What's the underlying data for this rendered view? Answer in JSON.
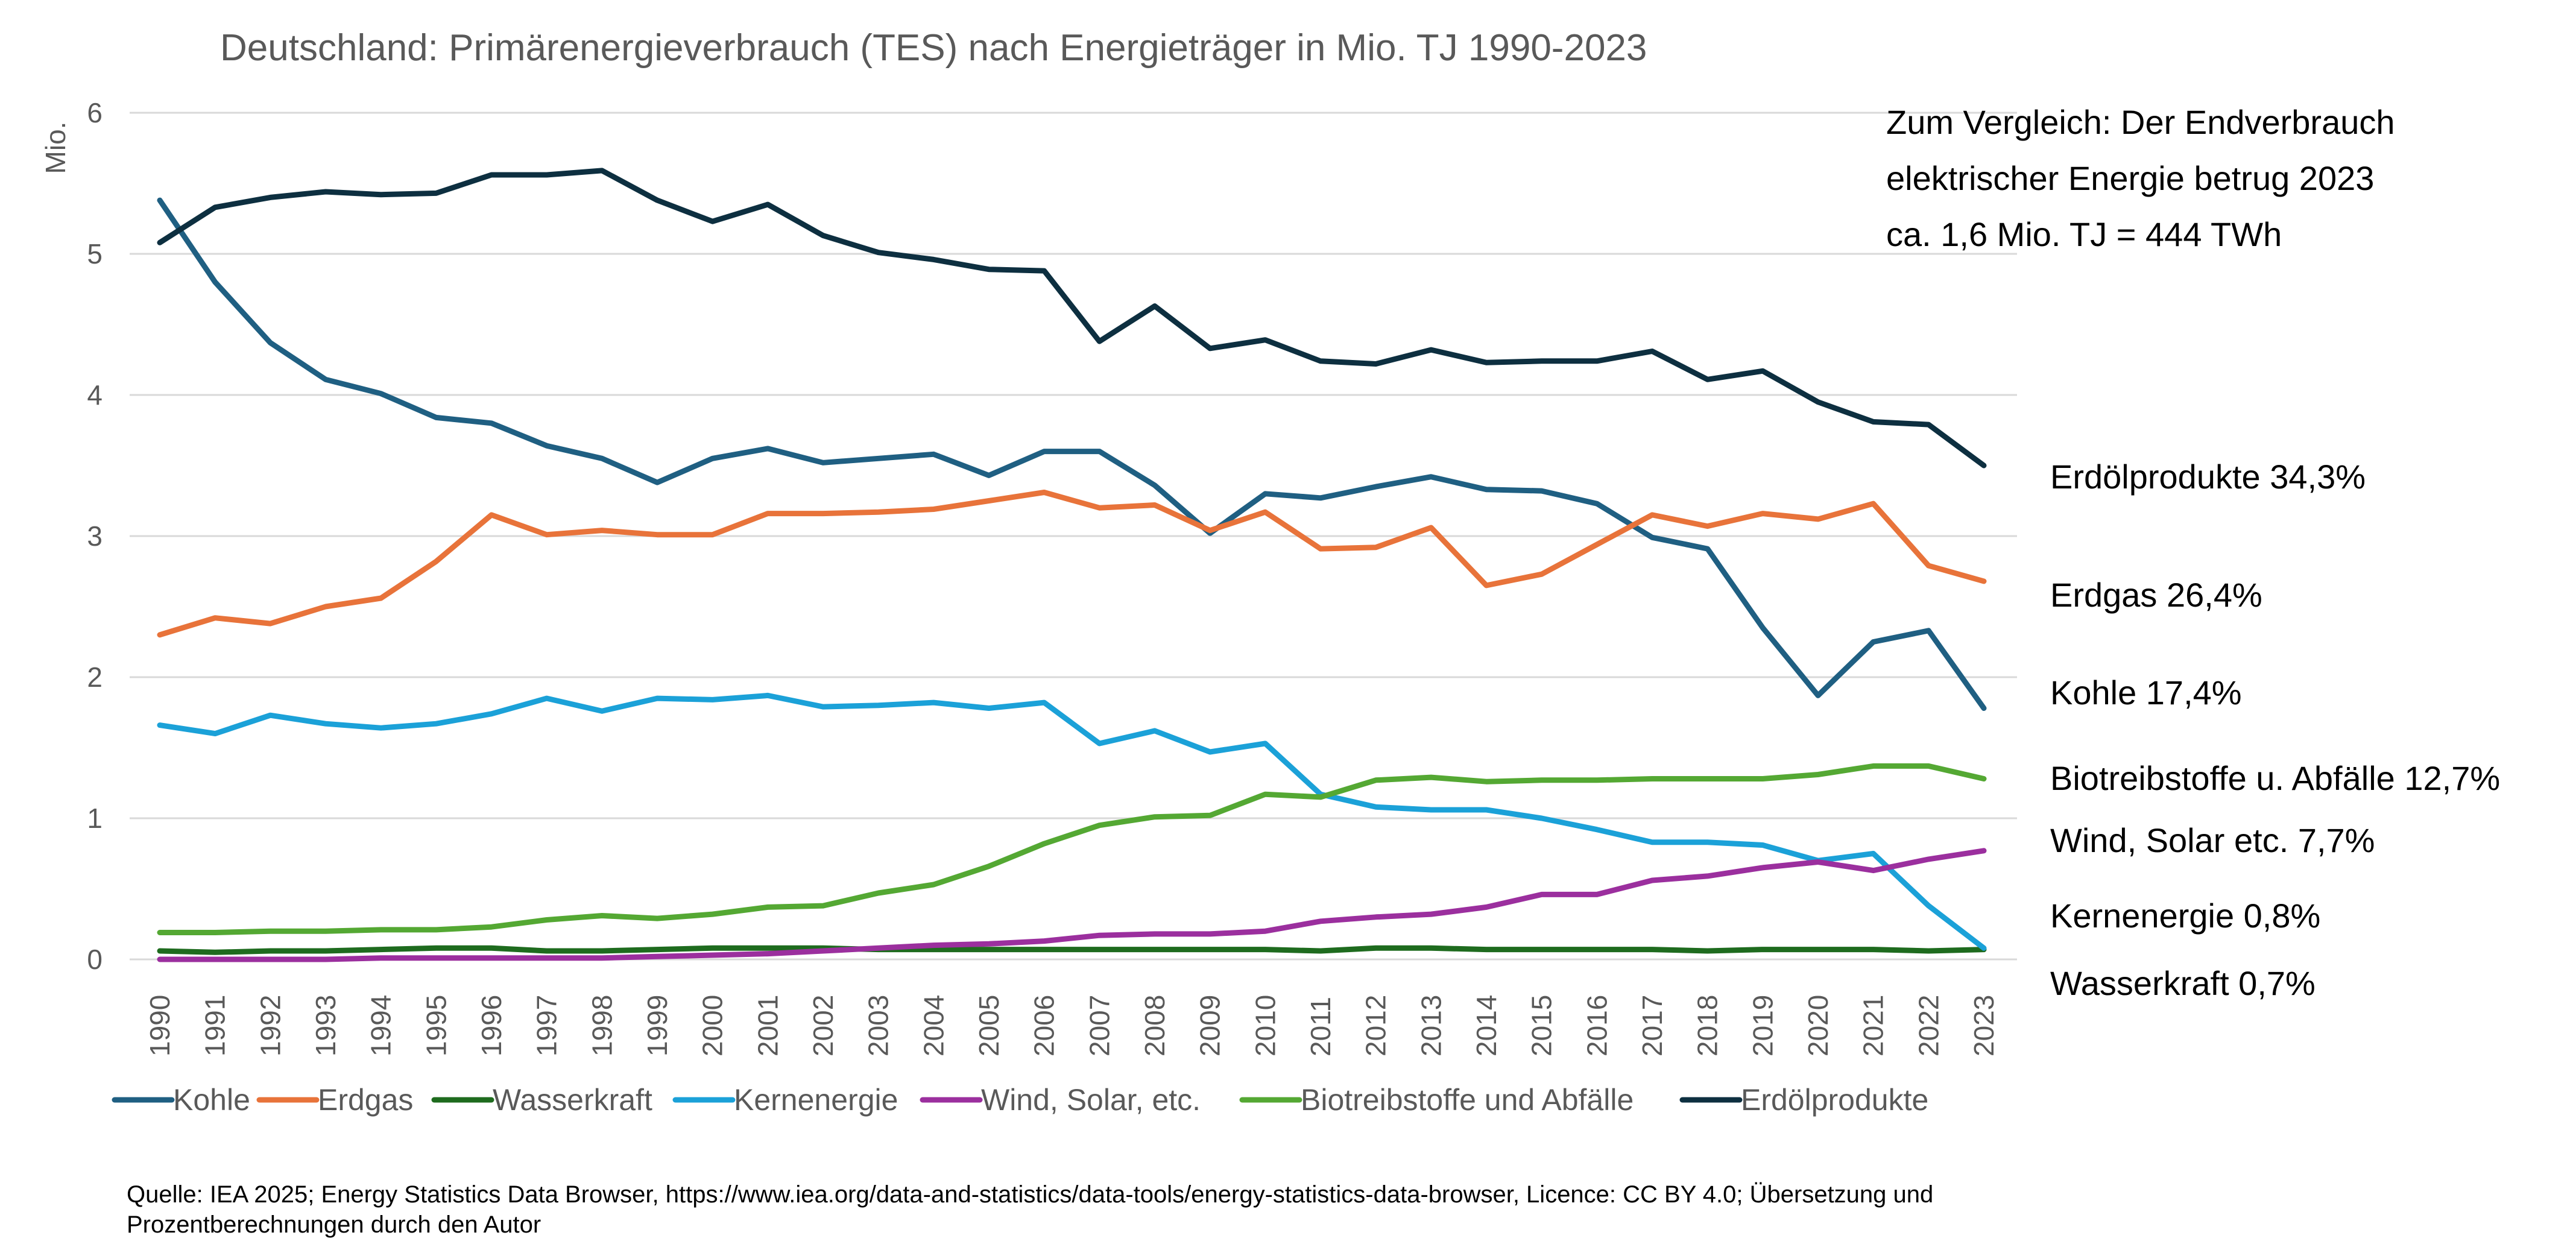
{
  "chart_data": {
    "type": "line",
    "title": "Deutschland: Primärenergieverbrauch (TES) nach Energieträger in Mio. TJ 1990-2023",
    "ylabel": "Mio.",
    "xlabel": "",
    "ylim": [
      0,
      6
    ],
    "yticks": [
      "0",
      "1",
      "2",
      "3",
      "4",
      "5",
      "6"
    ],
    "grid": true,
    "legend_position": "bottom",
    "categories": [
      "1990",
      "1991",
      "1992",
      "1993",
      "1994",
      "1995",
      "1996",
      "1997",
      "1998",
      "1999",
      "2000",
      "2001",
      "2002",
      "2003",
      "2004",
      "2005",
      "2006",
      "2007",
      "2008",
      "2009",
      "2010",
      "2011",
      "2012",
      "2013",
      "2014",
      "2015",
      "2016",
      "2017",
      "2018",
      "2019",
      "2020",
      "2021",
      "2022",
      "2023"
    ],
    "series": [
      {
        "name": "Kohle",
        "color": "#1f5f82",
        "values": [
          5.38,
          4.8,
          4.37,
          4.11,
          4.01,
          3.84,
          3.8,
          3.64,
          3.55,
          3.38,
          3.55,
          3.62,
          3.52,
          3.55,
          3.58,
          3.43,
          3.6,
          3.6,
          3.36,
          3.02,
          3.3,
          3.27,
          3.35,
          3.42,
          3.33,
          3.32,
          3.23,
          2.99,
          2.91,
          2.35,
          1.87,
          2.25,
          2.33,
          1.78
        ]
      },
      {
        "name": "Erdgas",
        "color": "#e8733a",
        "values": [
          2.3,
          2.42,
          2.38,
          2.5,
          2.56,
          2.82,
          3.15,
          3.01,
          3.04,
          3.01,
          3.01,
          3.16,
          3.16,
          3.17,
          3.19,
          3.25,
          3.31,
          3.2,
          3.22,
          3.04,
          3.17,
          2.91,
          2.92,
          3.06,
          2.65,
          2.73,
          2.94,
          3.15,
          3.07,
          3.16,
          3.12,
          3.23,
          2.79,
          2.68
        ]
      },
      {
        "name": "Wasserkraft",
        "color": "#1e6b1e",
        "values": [
          0.06,
          0.05,
          0.06,
          0.06,
          0.07,
          0.08,
          0.08,
          0.06,
          0.06,
          0.07,
          0.08,
          0.08,
          0.08,
          0.07,
          0.07,
          0.07,
          0.07,
          0.07,
          0.07,
          0.07,
          0.07,
          0.06,
          0.08,
          0.08,
          0.07,
          0.07,
          0.07,
          0.07,
          0.06,
          0.07,
          0.07,
          0.07,
          0.06,
          0.07
        ]
      },
      {
        "name": "Kernenergie",
        "color": "#1ba1d8",
        "values": [
          1.66,
          1.6,
          1.73,
          1.67,
          1.64,
          1.67,
          1.74,
          1.85,
          1.76,
          1.85,
          1.84,
          1.87,
          1.79,
          1.8,
          1.82,
          1.78,
          1.82,
          1.53,
          1.62,
          1.47,
          1.53,
          1.17,
          1.08,
          1.06,
          1.06,
          1.0,
          0.92,
          0.83,
          0.83,
          0.81,
          0.7,
          0.75,
          0.38,
          0.08
        ]
      },
      {
        "name": "Wind, Solar, etc.",
        "color": "#9b2f9e",
        "values": [
          0.0,
          0.0,
          0.0,
          0.0,
          0.01,
          0.01,
          0.01,
          0.01,
          0.01,
          0.02,
          0.03,
          0.04,
          0.06,
          0.08,
          0.1,
          0.11,
          0.13,
          0.17,
          0.18,
          0.18,
          0.2,
          0.27,
          0.3,
          0.32,
          0.37,
          0.46,
          0.46,
          0.56,
          0.59,
          0.65,
          0.69,
          0.63,
          0.71,
          0.77
        ]
      },
      {
        "name": "Biotreibstoffe und Abfälle",
        "color": "#54a833",
        "values": [
          0.19,
          0.19,
          0.2,
          0.2,
          0.21,
          0.21,
          0.23,
          0.28,
          0.31,
          0.29,
          0.32,
          0.37,
          0.38,
          0.47,
          0.53,
          0.66,
          0.82,
          0.95,
          1.01,
          1.02,
          1.17,
          1.15,
          1.27,
          1.29,
          1.26,
          1.27,
          1.27,
          1.28,
          1.28,
          1.28,
          1.31,
          1.37,
          1.37,
          1.28
        ]
      },
      {
        "name": "Erdölprodukte",
        "color": "#0d2f40",
        "values": [
          5.08,
          5.33,
          5.4,
          5.44,
          5.42,
          5.43,
          5.56,
          5.56,
          5.59,
          5.38,
          5.23,
          5.35,
          5.13,
          5.01,
          4.96,
          4.89,
          4.88,
          4.38,
          4.63,
          4.33,
          4.39,
          4.24,
          4.22,
          4.32,
          4.23,
          4.24,
          4.24,
          4.31,
          4.11,
          4.17,
          3.95,
          3.81,
          3.79,
          3.5
        ]
      }
    ],
    "annotations": {
      "comparison": [
        "Zum Vergleich: Der Endverbrauch",
        "elektrischer Energie betrug 2023",
        "ca. 1,6 Mio. TJ = 444 TWh"
      ],
      "shares": [
        {
          "label": "Erdölprodukte 34,3%",
          "value": 3.5
        },
        {
          "label": "Erdgas 26,4%",
          "value": 2.68
        },
        {
          "label": "Kohle 17,4%",
          "value": 1.78
        },
        {
          "label": "Biotreibstoffe u. Abfälle 12,7%",
          "value": 1.28
        },
        {
          "label": "Wind, Solar etc. 7,7%",
          "value": 0.77
        },
        {
          "label": "Kernenergie 0,8%",
          "value": 0.08
        },
        {
          "label": "Wasserkraft 0,7%",
          "value": 0.07
        }
      ]
    },
    "source": [
      "Quelle: IEA 2025; Energy Statistics Data Browser, https://www.iea.org/data-and-statistics/data-tools/energy-statistics-data-browser, Licence: CC BY 4.0; Übersetzung und",
      "Prozentberechnungen durch den Autor"
    ]
  }
}
